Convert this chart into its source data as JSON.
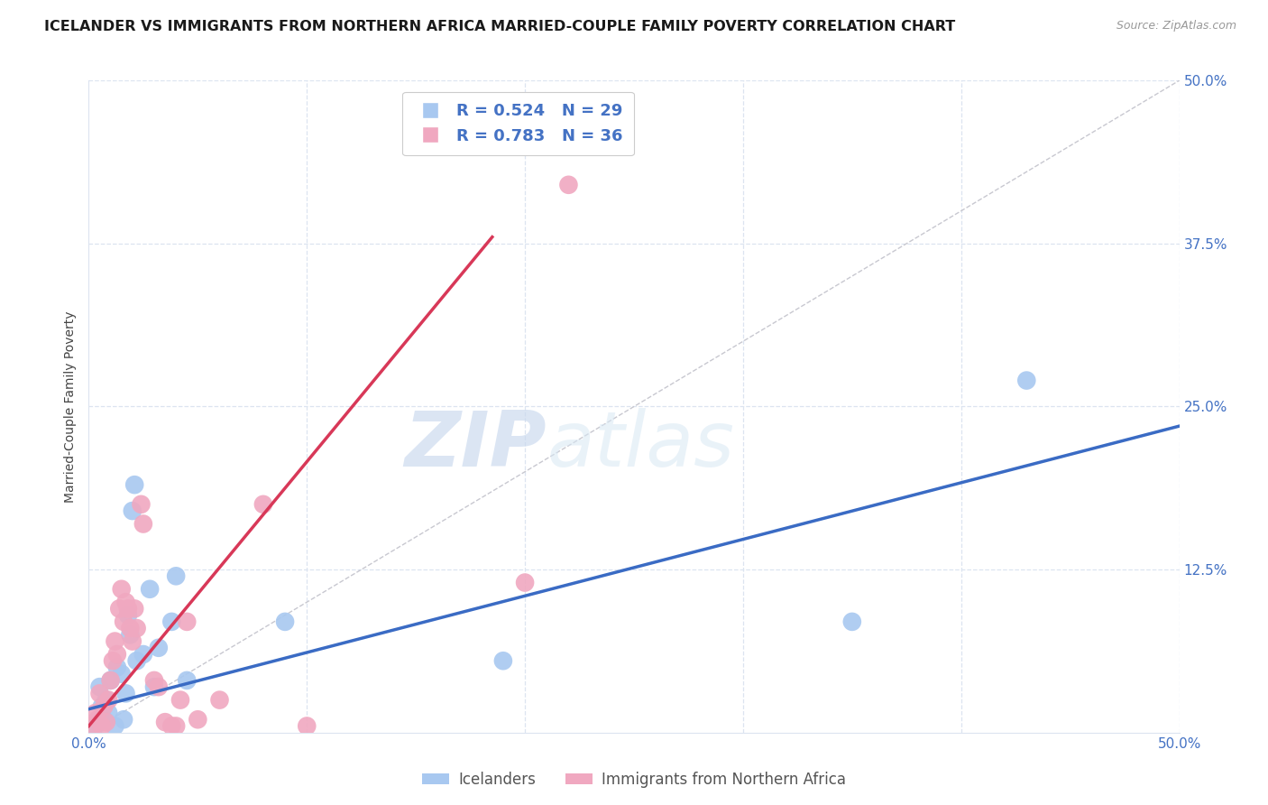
{
  "title": "ICELANDER VS IMMIGRANTS FROM NORTHERN AFRICA MARRIED-COUPLE FAMILY POVERTY CORRELATION CHART",
  "source": "Source: ZipAtlas.com",
  "ylabel": "Married-Couple Family Poverty",
  "xlim": [
    0.0,
    0.5
  ],
  "ylim": [
    0.0,
    0.5
  ],
  "xticks": [
    0.0,
    0.1,
    0.2,
    0.3,
    0.4,
    0.5
  ],
  "yticks": [
    0.0,
    0.125,
    0.25,
    0.375,
    0.5
  ],
  "xticklabels": [
    "0.0%",
    "",
    "",
    "",
    "",
    "50.0%"
  ],
  "yticklabels": [
    "",
    "12.5%",
    "25.0%",
    "37.5%",
    "50.0%"
  ],
  "watermark_zip": "ZIP",
  "watermark_atlas": "atlas",
  "blue_color": "#a8c8f0",
  "pink_color": "#f0a8c0",
  "blue_line_color": "#3a6bc4",
  "pink_line_color": "#d83858",
  "scatter_blue": [
    [
      0.003,
      0.005
    ],
    [
      0.004,
      0.008
    ],
    [
      0.005,
      0.035
    ],
    [
      0.006,
      0.02
    ],
    [
      0.007,
      0.01
    ],
    [
      0.008,
      0.025
    ],
    [
      0.009,
      0.015
    ],
    [
      0.01,
      0.04
    ],
    [
      0.012,
      0.005
    ],
    [
      0.013,
      0.05
    ],
    [
      0.015,
      0.045
    ],
    [
      0.016,
      0.01
    ],
    [
      0.017,
      0.03
    ],
    [
      0.018,
      0.09
    ],
    [
      0.019,
      0.075
    ],
    [
      0.02,
      0.17
    ],
    [
      0.021,
      0.19
    ],
    [
      0.022,
      0.055
    ],
    [
      0.025,
      0.06
    ],
    [
      0.028,
      0.11
    ],
    [
      0.03,
      0.035
    ],
    [
      0.032,
      0.065
    ],
    [
      0.038,
      0.085
    ],
    [
      0.04,
      0.12
    ],
    [
      0.045,
      0.04
    ],
    [
      0.09,
      0.085
    ],
    [
      0.19,
      0.055
    ],
    [
      0.35,
      0.085
    ],
    [
      0.43,
      0.27
    ]
  ],
  "scatter_pink": [
    [
      0.002,
      0.005
    ],
    [
      0.003,
      0.015
    ],
    [
      0.004,
      0.01
    ],
    [
      0.005,
      0.03
    ],
    [
      0.006,
      0.005
    ],
    [
      0.007,
      0.02
    ],
    [
      0.008,
      0.008
    ],
    [
      0.009,
      0.025
    ],
    [
      0.01,
      0.04
    ],
    [
      0.011,
      0.055
    ],
    [
      0.012,
      0.07
    ],
    [
      0.013,
      0.06
    ],
    [
      0.014,
      0.095
    ],
    [
      0.015,
      0.11
    ],
    [
      0.016,
      0.085
    ],
    [
      0.017,
      0.1
    ],
    [
      0.018,
      0.095
    ],
    [
      0.019,
      0.08
    ],
    [
      0.02,
      0.07
    ],
    [
      0.021,
      0.095
    ],
    [
      0.022,
      0.08
    ],
    [
      0.024,
      0.175
    ],
    [
      0.025,
      0.16
    ],
    [
      0.03,
      0.04
    ],
    [
      0.032,
      0.035
    ],
    [
      0.035,
      0.008
    ],
    [
      0.038,
      0.005
    ],
    [
      0.04,
      0.005
    ],
    [
      0.042,
      0.025
    ],
    [
      0.045,
      0.085
    ],
    [
      0.05,
      0.01
    ],
    [
      0.06,
      0.025
    ],
    [
      0.08,
      0.175
    ],
    [
      0.1,
      0.005
    ],
    [
      0.2,
      0.115
    ],
    [
      0.22,
      0.42
    ]
  ],
  "blue_trend_x": [
    0.0,
    0.5
  ],
  "blue_trend_y": [
    0.018,
    0.235
  ],
  "pink_trend_x": [
    0.0,
    0.185
  ],
  "pink_trend_y": [
    0.005,
    0.38
  ],
  "identity_line": true,
  "background_color": "#ffffff",
  "grid_color": "#dce4f0",
  "title_fontsize": 11.5,
  "axis_label_fontsize": 10,
  "tick_fontsize": 11,
  "source_fontsize": 9
}
